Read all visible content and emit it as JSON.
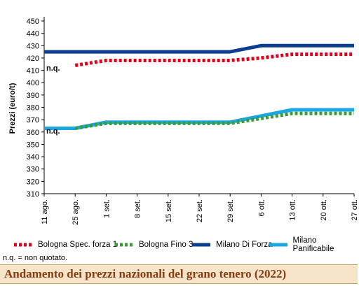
{
  "chart_data": {
    "type": "line",
    "ylabel": "Prezzi (euro/t)",
    "xlabel": "",
    "ylim": [
      310,
      450
    ],
    "yticks": [
      310,
      320,
      330,
      340,
      350,
      360,
      370,
      380,
      390,
      400,
      410,
      420,
      430,
      440,
      450
    ],
    "grid": false,
    "legend_position": "bottom",
    "categories": [
      "11 ago.",
      "25 ago.",
      "1 set.",
      "8 set.",
      "15 set.",
      "22 set.",
      "29 set.",
      "6 ott.",
      "13 ott.",
      "20 ott.",
      "27 ott."
    ],
    "series": [
      {
        "name": "Bologna Spec. forza 1",
        "color": "#e2001a",
        "style": "dotted",
        "values": [
          null,
          414,
          418,
          418,
          418,
          418,
          418,
          420,
          423,
          423,
          423
        ]
      },
      {
        "name": "Bologna Fino 3",
        "color": "#3a9c35",
        "style": "dotted",
        "values": [
          null,
          363,
          367,
          367,
          367,
          367,
          367,
          371,
          375,
          375,
          375
        ]
      },
      {
        "name": "Milano Di Forza",
        "color": "#0b3d91",
        "style": "solid",
        "values": [
          425,
          425,
          425,
          425,
          425,
          425,
          425,
          430,
          430,
          430,
          430
        ]
      },
      {
        "name": "Milano Panificabile",
        "color": "#1aa7e3",
        "style": "solid",
        "values": [
          363,
          363,
          368,
          368,
          368,
          368,
          368,
          373,
          378,
          378,
          378
        ]
      }
    ],
    "annotations": [
      {
        "text": "n.q.",
        "x": "11 ago.",
        "y": 412
      },
      {
        "text": "n.q.",
        "x": "11 ago.",
        "y": 361
      }
    ]
  },
  "note": "n.q. = non quotato.",
  "caption": "Andamento dei prezzi nazionali del grano tenero (2022)",
  "colors": {
    "caption_bg": "#f5e4c8",
    "caption_text": "#8a3b12"
  }
}
